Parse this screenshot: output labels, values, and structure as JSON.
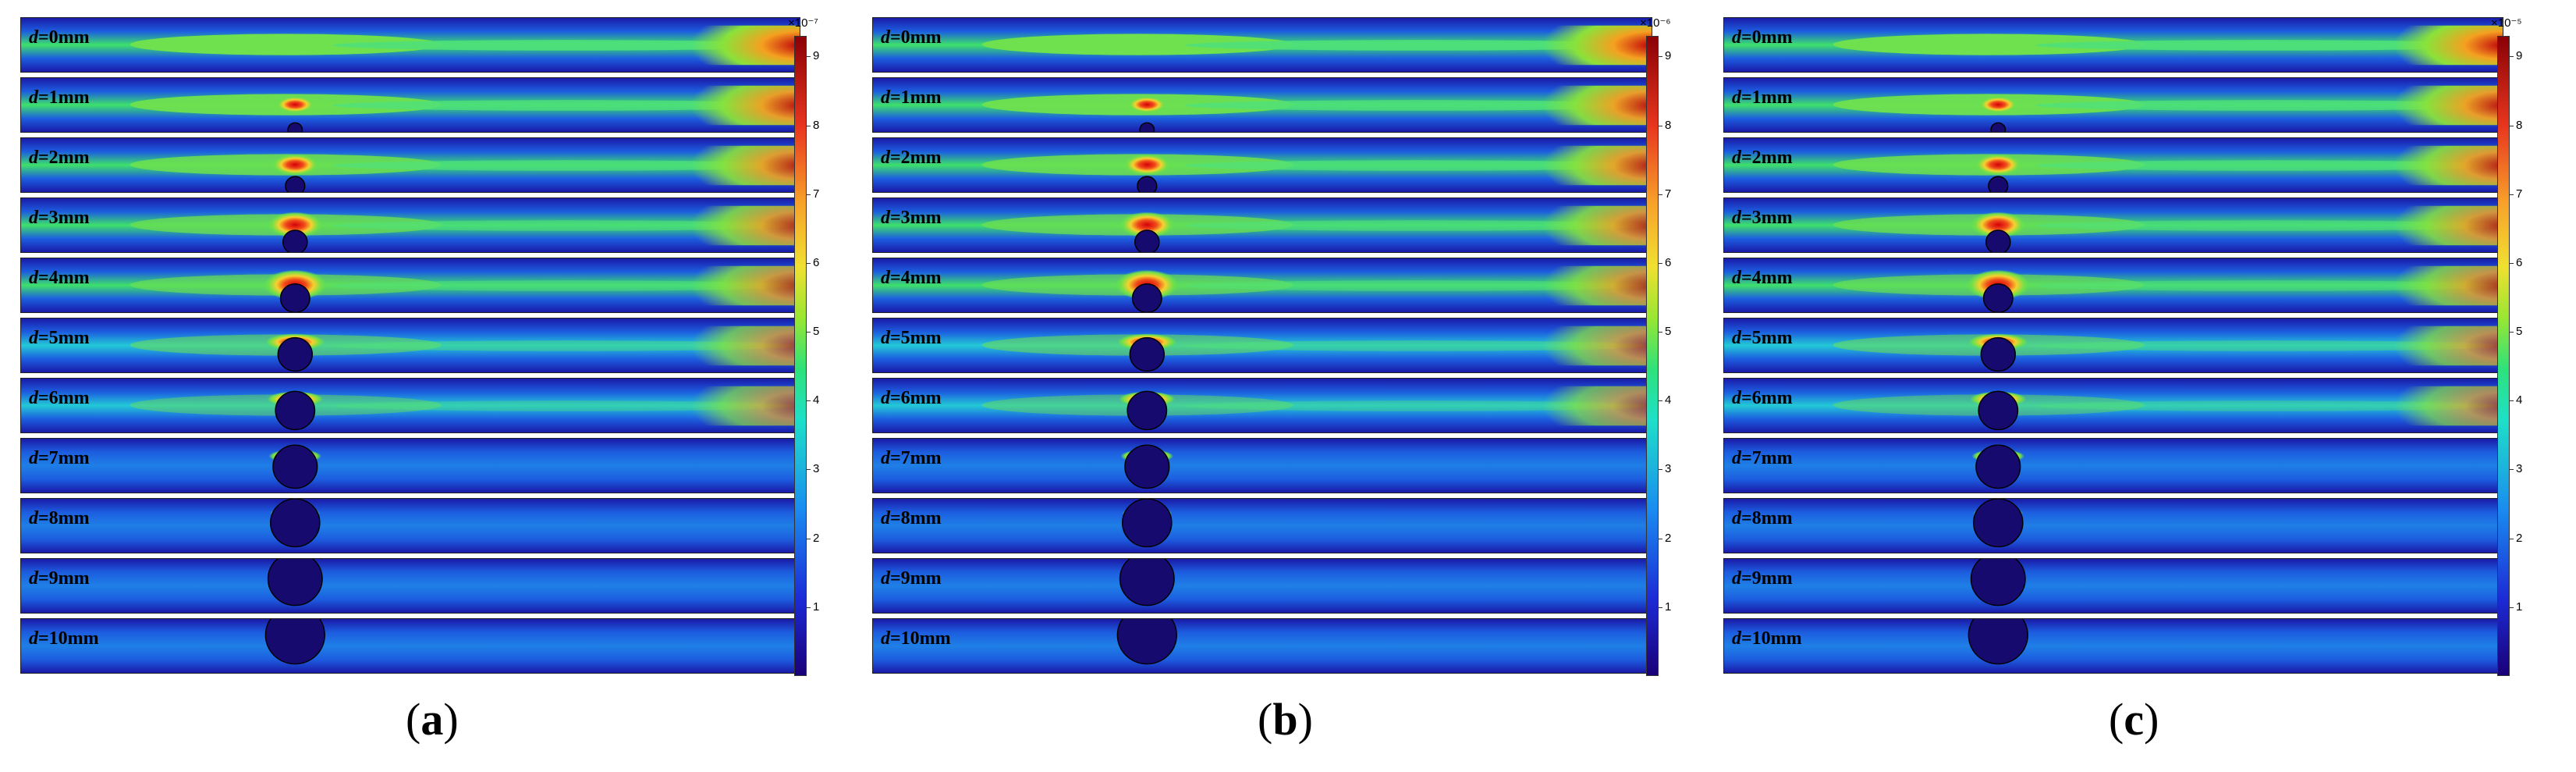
{
  "panels": [
    {
      "id": "a",
      "label_open": "(",
      "label_letter": "a",
      "label_close": ")",
      "colorbar_exponent": "×10⁻⁷"
    },
    {
      "id": "b",
      "label_open": "(",
      "label_letter": "b",
      "label_close": ")",
      "colorbar_exponent": "×10⁻⁶"
    },
    {
      "id": "c",
      "label_open": "(",
      "label_letter": "c",
      "label_close": ")",
      "colorbar_exponent": "×10⁻⁵"
    }
  ],
  "strip_labels": [
    {
      "var": "d",
      "value": "=0mm"
    },
    {
      "var": "d",
      "value": "=1mm"
    },
    {
      "var": "d",
      "value": "=2mm"
    },
    {
      "var": "d",
      "value": "=3mm"
    },
    {
      "var": "d",
      "value": "=4mm"
    },
    {
      "var": "d",
      "value": "=5mm"
    },
    {
      "var": "d",
      "value": "=6mm"
    },
    {
      "var": "d",
      "value": "=7mm"
    },
    {
      "var": "d",
      "value": "=8mm"
    },
    {
      "var": "d",
      "value": "=9mm"
    },
    {
      "var": "d",
      "value": "=10mm"
    }
  ],
  "d_values_mm": [
    0,
    1,
    2,
    3,
    4,
    5,
    6,
    7,
    8,
    9,
    10
  ],
  "colorbar_ticks": [
    "1",
    "2",
    "3",
    "4",
    "5",
    "6",
    "7",
    "8",
    "9"
  ],
  "colors": {
    "low": "#1a0078",
    "blue": "#1c2bd6",
    "cyan": "#1ee0c8",
    "green": "#2ee27a",
    "yellow": "#f0e030",
    "orange": "#f7a12a",
    "red": "#e8361e",
    "dark_red": "#8a0006"
  }
}
